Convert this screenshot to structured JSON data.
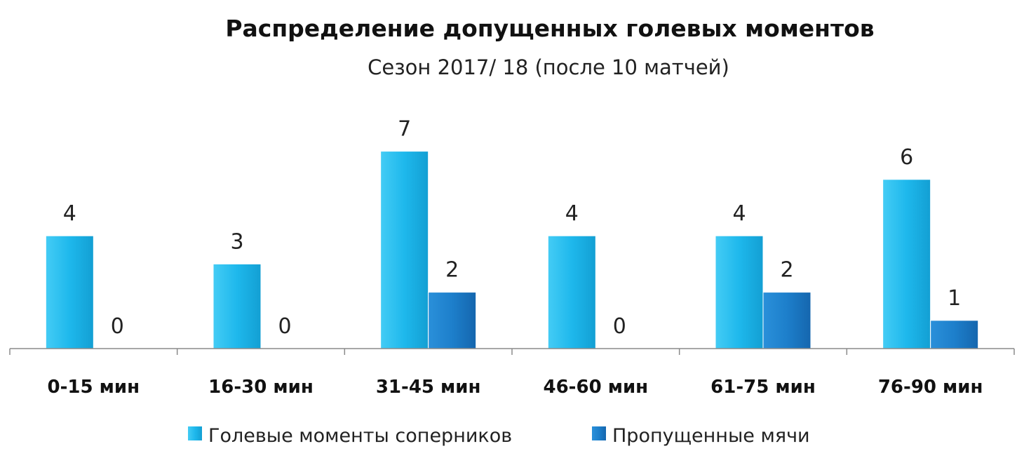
{
  "chart_data": {
    "type": "bar",
    "title": "Распределение допущенных голевых моментов",
    "subtitle": "Сезон 2017/ 18 (после 10 матчей)",
    "categories": [
      "0-15 мин",
      "16-30 мин",
      "31-45 мин",
      "46-60 мин",
      "61-75 мин",
      "76-90 мин"
    ],
    "series": [
      {
        "name": "Голевые моменты соперников",
        "values": [
          4,
          3,
          7,
          4,
          4,
          6
        ],
        "color": "#1EB8EC"
      },
      {
        "name": "Пропущенные мячи",
        "values": [
          0,
          0,
          2,
          0,
          2,
          1
        ],
        "color": "#1D7FCB"
      }
    ],
    "ylim": [
      0,
      7
    ],
    "grid": false,
    "legend": "bottom",
    "data_labels": true
  }
}
